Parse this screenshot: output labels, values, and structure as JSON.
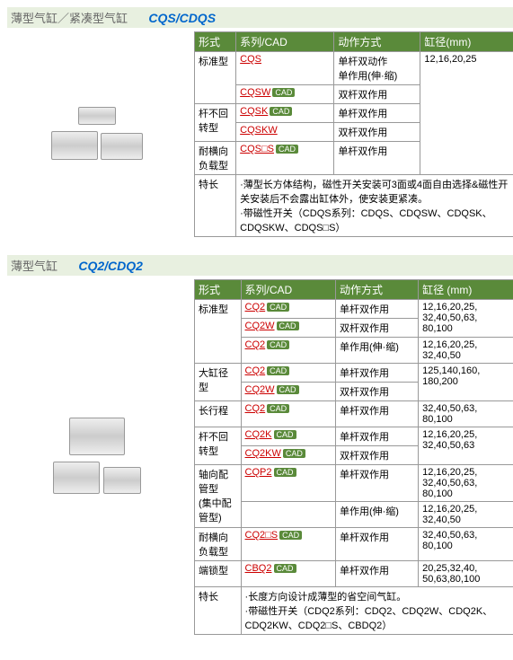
{
  "s1": {
    "title": "薄型气缸／紧凑型气缸",
    "model": "CQS/CDQS",
    "headers": [
      "形式",
      "系列/CAD",
      "动作方式",
      "缸径(mm)"
    ],
    "bore": "12,16,20,25",
    "rows": [
      {
        "type": "标准型",
        "series": "CQS",
        "action": "单杆双动作\n单作用(伸·缩)",
        "rs": 2
      },
      {
        "type": "",
        "series": "CQSW",
        "action": "双杆双作用"
      },
      {
        "type": "杆不回转型",
        "series": "CQSK",
        "action": "单杆双作用",
        "rs": 2
      },
      {
        "type": "",
        "series": "CQSKW",
        "action": "双杆双作用"
      },
      {
        "type": "耐横向负载型",
        "series": "CQS□S",
        "action": "单杆双作用"
      }
    ],
    "feat_label": "特长",
    "feat": "·薄型长方体结构，磁性开关安装可3面或4面自由选择&磁性开关安装后不会露出缸体外，使安装更紧凑。\n·带磁性开关（CDQS系列：CDQS、CDQSW、CDQSK、CDQSKW、CDQS□S）"
  },
  "s2": {
    "title": "薄型气缸",
    "model": "CQ2/CDQ2",
    "headers": [
      "形式",
      "系列/CAD",
      "动作方式",
      "缸径 (mm)"
    ],
    "rows": [
      {
        "type": "标准型",
        "series": "CQ2",
        "action": "单杆双作用",
        "bore": "12,16,20,25,\n32,40,50,63,\n80,100",
        "rs": 3
      },
      {
        "type": "",
        "series": "CQ2W",
        "action": "双杆双作用",
        "bore": ""
      },
      {
        "type": "",
        "series": "CQ2",
        "action": "单作用(伸·缩)",
        "bore": "12,16,20,25,\n32,40,50"
      },
      {
        "type": "大缸径型",
        "series": "CQ2",
        "action": "单杆双作用",
        "bore": "125,140,160,\n180,200",
        "rs": 2
      },
      {
        "type": "",
        "series": "CQ2W",
        "action": "双杆双作用",
        "bore": ""
      },
      {
        "type": "长行程",
        "series": "CQ2",
        "action": "单杆双作用",
        "bore": "32,40,50,63,\n80,100"
      },
      {
        "type": "杆不回转型",
        "series": "CQ2K",
        "action": "单杆双作用",
        "bore": "12,16,20,25,\n32,40,50,63",
        "rs": 2
      },
      {
        "type": "",
        "series": "CQ2KW",
        "action": "双杆双作用",
        "bore": ""
      },
      {
        "type": "轴向配管型\n(集中配管型)",
        "series": "CQP2",
        "action": "单杆双作用",
        "bore": "12,16,20,25,\n32,40,50,63,\n80,100",
        "rs": 2
      },
      {
        "type": "",
        "series": "",
        "action": "单作用(伸·缩)",
        "bore": "12,16,20,25,\n32,40,50"
      },
      {
        "type": "耐横向负载型",
        "series": "CQ2□S",
        "action": "单杆双作用",
        "bore": "32,40,50,63,\n80,100"
      },
      {
        "type": "端锁型",
        "series": "CBQ2",
        "action": "单杆双作用",
        "bore": "20,25,32,40,\n50,63,80,100"
      }
    ],
    "feat_label": "特长",
    "feat": "·长度方向设计成薄型的省空间气缸。\n·带磁性开关（CDQ2系列：CDQ2、CDQ2W、CDQ2K、CDQ2KW、CDQ2□S、CBDQ2）"
  }
}
